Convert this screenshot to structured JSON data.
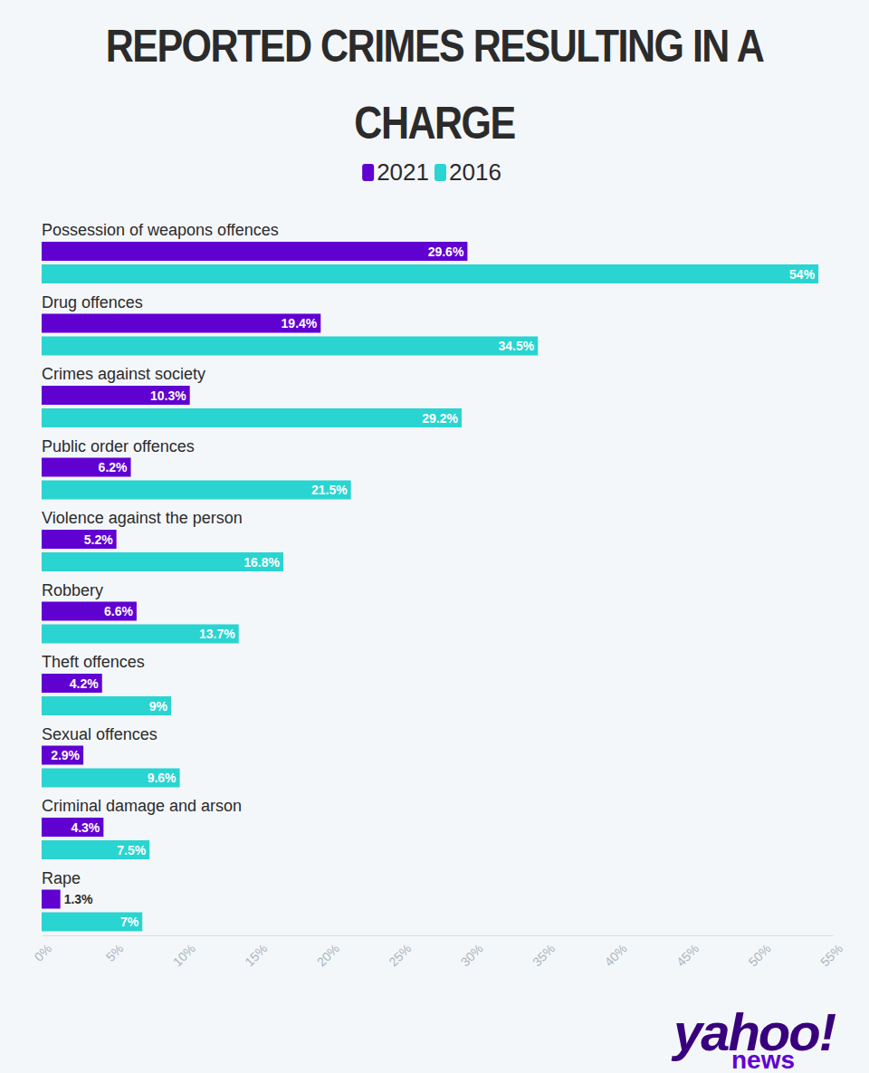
{
  "chart_data": {
    "type": "bar",
    "orientation": "horizontal",
    "title": "REPORTED CRIMES RESULTING IN A CHARGE",
    "categories": [
      "Possession of weapons offences",
      "Drug offences",
      "Crimes against society",
      "Public order offences",
      "Violence against the person",
      "Robbery",
      "Theft offences",
      "Sexual offences",
      "Criminal damage and arson",
      "Rape"
    ],
    "series": [
      {
        "name": "2021",
        "color": "#6001d2",
        "values": [
          29.6,
          19.4,
          10.3,
          6.2,
          5.2,
          6.6,
          4.2,
          2.9,
          4.3,
          1.3
        ],
        "value_labels": [
          "29.6%",
          "19.4%",
          "10.3%",
          "6.2%",
          "5.2%",
          "6.6%",
          "4.2%",
          "2.9%",
          "4.3%",
          "1.3%"
        ]
      },
      {
        "name": "2016",
        "color": "#2ad4d1",
        "values": [
          54,
          34.5,
          29.2,
          21.5,
          16.8,
          13.7,
          9,
          9.6,
          7.5,
          7
        ],
        "value_labels": [
          "54%",
          "34.5%",
          "29.2%",
          "21.5%",
          "16.8%",
          "13.7%",
          "9%",
          "9.6%",
          "7.5%",
          "7%"
        ]
      }
    ],
    "xlim": [
      0,
      55
    ],
    "xticks": [
      {
        "value": 0,
        "label": "0%"
      },
      {
        "value": 5,
        "label": "5%"
      },
      {
        "value": 10,
        "label": "10%"
      },
      {
        "value": 15,
        "label": "15%"
      },
      {
        "value": 20,
        "label": "20%"
      },
      {
        "value": 25,
        "label": "25%"
      },
      {
        "value": 30,
        "label": "30%"
      },
      {
        "value": 35,
        "label": "35%"
      },
      {
        "value": 40,
        "label": "40%"
      },
      {
        "value": 45,
        "label": "45%"
      },
      {
        "value": 50,
        "label": "50%"
      },
      {
        "value": 55,
        "label": "55%"
      }
    ],
    "grid": false,
    "legend": "top",
    "data_labels": true,
    "annotations": [
      "yahoo!",
      "news"
    ]
  }
}
